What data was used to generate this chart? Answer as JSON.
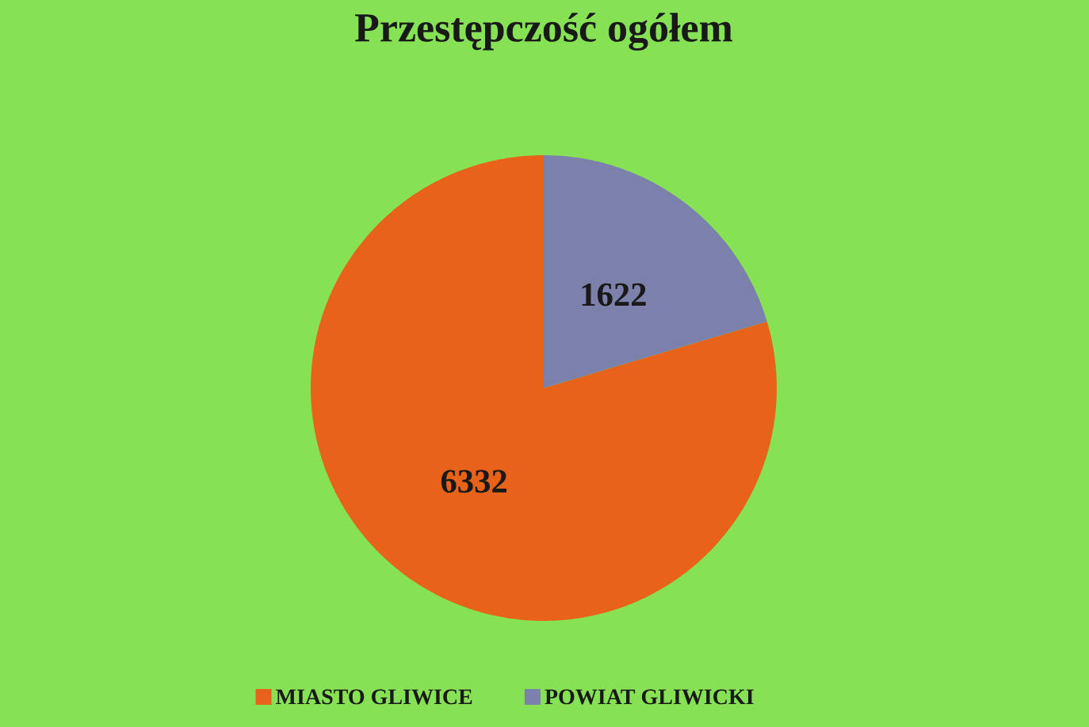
{
  "chart_data": {
    "type": "pie",
    "title": "Przestępczość ogółem",
    "categories": [
      "MIASTO GLIWICE",
      "POWIAT GLIWICKI"
    ],
    "values": [
      6332,
      1622
    ],
    "colors": [
      "#e8621a",
      "#7b81aa"
    ],
    "data_labels": true,
    "legend": "bottom"
  }
}
